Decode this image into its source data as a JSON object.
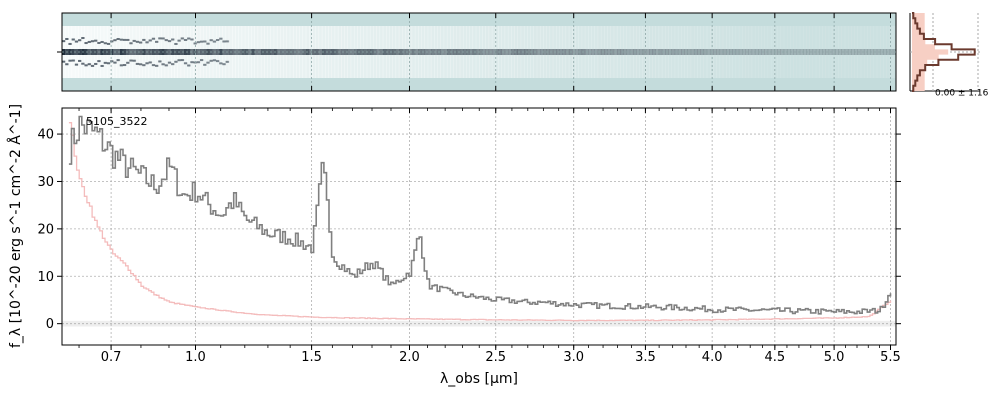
{
  "chart_data": {
    "type": "line",
    "object_label": "5105_3522",
    "xlabel": "λ_obs [μm]",
    "ylabel": "f_λ [10^-20 erg s^-1 cm^-2 Å^-1]",
    "x_scale": "sqrt",
    "xlim": [
      0.55,
      5.55
    ],
    "ylim": [
      -4.5,
      45.5
    ],
    "x_ticks": [
      0.7,
      1.0,
      1.5,
      2.0,
      2.5,
      3.0,
      3.5,
      4.0,
      4.5,
      5.0,
      5.5
    ],
    "x_tick_labels": [
      "0.7",
      "1.0",
      "1.5",
      "2.0",
      "2.5",
      "3.0",
      "3.5",
      "4.0",
      "4.5",
      "5.0",
      "5.5"
    ],
    "y_ticks": [
      0,
      10,
      20,
      30,
      40
    ],
    "y_tick_labels": [
      "0",
      "10",
      "20",
      "30",
      "40"
    ],
    "grid": true,
    "series": [
      {
        "color": "#808080",
        "style": "steps",
        "x": [
          0.57,
          0.6,
          0.65,
          0.7,
          0.75,
          0.8,
          0.85,
          0.9,
          0.95,
          1.0,
          1.05,
          1.1,
          1.15,
          1.2,
          1.3,
          1.4,
          1.5,
          1.55,
          1.6,
          1.7,
          1.8,
          1.9,
          2.0,
          2.05,
          2.1,
          2.2,
          2.3,
          2.4,
          2.5,
          2.6,
          2.7,
          2.8,
          2.9,
          3.0,
          3.2,
          3.4,
          3.6,
          3.8,
          4.0,
          4.2,
          4.4,
          4.6,
          4.8,
          5.0,
          5.2,
          5.4,
          5.5
        ],
        "y": [
          37,
          42,
          40,
          36,
          33,
          31,
          29,
          33,
          27,
          28,
          25,
          23,
          26,
          22,
          19,
          18,
          16,
          33,
          14,
          10,
          13,
          8,
          11,
          19,
          8,
          7,
          6,
          5.5,
          5,
          4.8,
          4.5,
          4.5,
          4.2,
          4,
          3.8,
          3.6,
          3.5,
          3.3,
          3,
          2.9,
          2.8,
          2.7,
          2.6,
          2.5,
          2.5,
          2.8,
          7
        ]
      },
      {
        "color": "#f4bcbc",
        "style": "steps",
        "x": [
          0.57,
          0.6,
          0.63,
          0.65,
          0.7,
          0.75,
          0.8,
          0.85,
          0.9,
          1.0,
          1.1,
          1.2,
          1.3,
          1.5,
          1.7,
          2.0,
          2.5,
          3.0,
          3.5,
          4.0,
          4.5,
          5.0,
          5.3,
          5.5
        ],
        "y": [
          42,
          30,
          25,
          21,
          15,
          12,
          8,
          6,
          4.5,
          3.5,
          2.8,
          2.2,
          1.8,
          1.4,
          1.2,
          1,
          0.8,
          0.7,
          0.7,
          0.8,
          1,
          1.2,
          1.5,
          5
        ]
      }
    ],
    "spectrum_2d": {
      "background_color": "#c4dcdc",
      "trace_color": "#1c2a38"
    },
    "profile_panel": {
      "label": "0.00 ± 1.16",
      "line_color": "#6b3a2e",
      "fill_color": "#f7cfc4"
    }
  }
}
